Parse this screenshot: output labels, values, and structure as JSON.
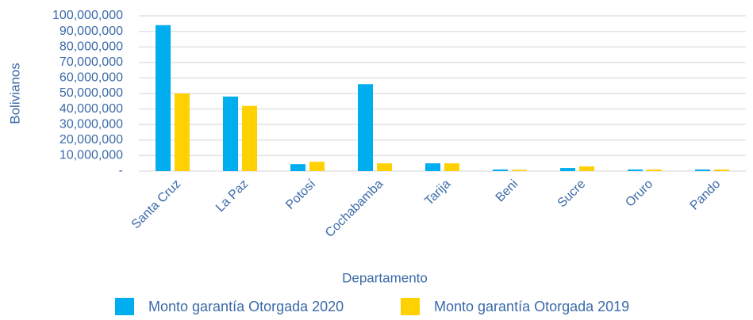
{
  "chart_data": {
    "type": "bar",
    "x_label": "Departamento",
    "y_label": "Bolivianos",
    "categories": [
      "Santa Cruz",
      "La Paz",
      "Potosí",
      "Cochabamba",
      "Tarija",
      "Beni",
      "Sucre",
      "Oruro",
      "Pando"
    ],
    "series": [
      {
        "name": "Monto garantía Otorgada 2020",
        "color": "#00aeef",
        "values": [
          94000000,
          48000000,
          4500000,
          56000000,
          5000000,
          1000000,
          2000000,
          1000000,
          1000000
        ]
      },
      {
        "name": "Monto garantía Otorgada 2019",
        "color": "#ffd100",
        "values": [
          50000000,
          42000000,
          6000000,
          5000000,
          5000000,
          800000,
          3000000,
          1000000,
          1000000
        ]
      }
    ],
    "ylim": [
      0,
      100000000
    ],
    "yticks": [
      {
        "value": 0,
        "label": "-"
      },
      {
        "value": 10000000,
        "label": "10,000,000"
      },
      {
        "value": 20000000,
        "label": "20,000,000"
      },
      {
        "value": 30000000,
        "label": "30,000,000"
      },
      {
        "value": 40000000,
        "label": "40,000,000"
      },
      {
        "value": 50000000,
        "label": "50,000,000"
      },
      {
        "value": 60000000,
        "label": "60,000,000"
      },
      {
        "value": 70000000,
        "label": "70,000,000"
      },
      {
        "value": 80000000,
        "label": "80,000,000"
      },
      {
        "value": 90000000,
        "label": "90,000,000"
      },
      {
        "value": 100000000,
        "label": "100,000,000"
      }
    ],
    "grid": true,
    "legend": "bottom"
  }
}
